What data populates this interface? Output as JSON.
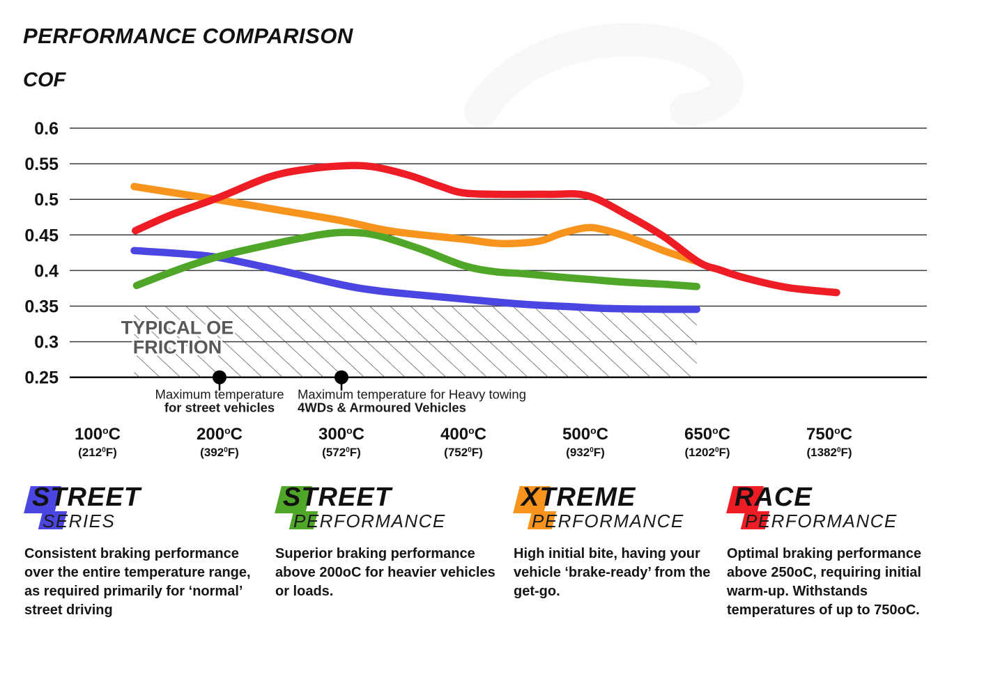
{
  "header": {
    "title": "PERFORMANCE COMPARISON"
  },
  "chart_data": {
    "type": "line",
    "title": "PERFORMANCE COMPARISON",
    "ylabel": "COF",
    "ylim": [
      0.25,
      0.6
    ],
    "y_ticks": [
      0.6,
      0.55,
      0.5,
      0.45,
      0.4,
      0.35,
      0.3,
      0.25
    ],
    "grid": true,
    "x_axis": {
      "categories": [
        100,
        200,
        300,
        400,
        500,
        650,
        750
      ],
      "ticks": [
        {
          "c": "100",
          "f": "212"
        },
        {
          "c": "200",
          "f": "392"
        },
        {
          "c": "300",
          "f": "572"
        },
        {
          "c": "400",
          "f": "752"
        },
        {
          "c": "500",
          "f": "932"
        },
        {
          "c": "650",
          "f": "1202"
        },
        {
          "c": "750",
          "f": "1382"
        }
      ],
      "c_sup": "o",
      "c_unit": "C",
      "f_prefix": "(",
      "f_sup": "0",
      "f_suffix": "F)"
    },
    "series": [
      {
        "name": "Street Series",
        "color": "#4B45E1",
        "points": [
          [
            130,
            0.428
          ],
          [
            170,
            0.4235
          ],
          [
            200,
            0.418
          ],
          [
            250,
            0.4
          ],
          [
            300,
            0.38
          ],
          [
            330,
            0.3715
          ],
          [
            365,
            0.3655
          ],
          [
            400,
            0.36
          ],
          [
            450,
            0.3525
          ],
          [
            490,
            0.349
          ],
          [
            520,
            0.347
          ],
          [
            560,
            0.346
          ],
          [
            600,
            0.3455
          ],
          [
            637,
            0.3455
          ]
        ]
      },
      {
        "name": "Street Performance",
        "color": "#4FA628",
        "points": [
          [
            132,
            0.379
          ],
          [
            164,
            0.4
          ],
          [
            200,
            0.42
          ],
          [
            250,
            0.4395
          ],
          [
            285,
            0.451
          ],
          [
            307,
            0.4535
          ],
          [
            330,
            0.449
          ],
          [
            365,
            0.43
          ],
          [
            400,
            0.407
          ],
          [
            425,
            0.3985
          ],
          [
            450,
            0.3955
          ],
          [
            478,
            0.391
          ],
          [
            500,
            0.388
          ],
          [
            550,
            0.3835
          ],
          [
            600,
            0.3805
          ],
          [
            637,
            0.3775
          ]
        ]
      },
      {
        "name": "Xtreme Performance",
        "color": "#F7941D",
        "points": [
          [
            130,
            0.518
          ],
          [
            200,
            0.499
          ],
          [
            250,
            0.4845
          ],
          [
            300,
            0.47
          ],
          [
            342,
            0.455
          ],
          [
            400,
            0.444
          ],
          [
            430,
            0.438
          ],
          [
            461,
            0.441
          ],
          [
            480,
            0.452
          ],
          [
            500,
            0.46
          ],
          [
            520,
            0.458
          ],
          [
            553,
            0.447
          ],
          [
            596,
            0.428
          ],
          [
            625,
            0.417
          ],
          [
            639,
            0.412
          ]
        ]
      },
      {
        "name": "Race Performance",
        "color": "#EE1C25",
        "points": [
          [
            131,
            0.456
          ],
          [
            160,
            0.478
          ],
          [
            200,
            0.503
          ],
          [
            240,
            0.531
          ],
          [
            270,
            0.542
          ],
          [
            300,
            0.547
          ],
          [
            325,
            0.546
          ],
          [
            355,
            0.534
          ],
          [
            380,
            0.519
          ],
          [
            400,
            0.509
          ],
          [
            430,
            0.507
          ],
          [
            470,
            0.507
          ],
          [
            503,
            0.505
          ],
          [
            553,
            0.477
          ],
          [
            596,
            0.448
          ],
          [
            639,
            0.412
          ],
          [
            660,
            0.401
          ],
          [
            682,
            0.389
          ],
          [
            716,
            0.376
          ],
          [
            756,
            0.369
          ]
        ]
      }
    ],
    "oe_band": {
      "label_lines": [
        "TYPICAL OE",
        "FRICTION"
      ],
      "cof_range": [
        0.25,
        0.35
      ],
      "temp_range": [
        130,
        637
      ],
      "label_color": "#58595B"
    },
    "markers": [
      {
        "x_temp": 200,
        "cof": 0.25,
        "align": "center",
        "lines": [
          "Maximum temperature",
          "for street vehicles"
        ]
      },
      {
        "x_temp": 300,
        "cof": 0.25,
        "align": "left",
        "lines": [
          "Maximum temperature for Heavy towing",
          "4WDs & Armoured Vehicles"
        ]
      }
    ]
  },
  "legend": {
    "items": [
      {
        "word1": "STREET",
        "word2": "SERIES",
        "color": "#4B45E1",
        "description": "Consistent braking performance over the entire temperature range, as required primarily for ‘normal’ street driving"
      },
      {
        "word1": "STREET",
        "word2": "PERFORMANCE",
        "color": "#4FA628",
        "description": "Superior braking performance above 200oC for heavier vehicles or loads."
      },
      {
        "word1": "XTREME",
        "word2": "PERFORMANCE",
        "color": "#F7941D",
        "description": "High initial bite, having your vehicle ‘brake-ready’ from the get-go."
      },
      {
        "word1": "RACE",
        "word2": "PERFORMANCE",
        "color": "#EE1C25",
        "description": "Optimal braking performance above 250oC, requiring initial warm-up. Withstands temperatures of up to 750oC."
      }
    ]
  }
}
